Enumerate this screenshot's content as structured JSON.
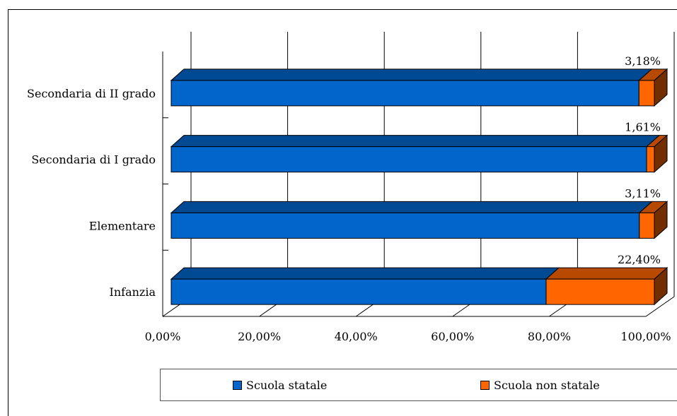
{
  "chart_data": {
    "type": "bar",
    "orientation": "horizontal",
    "stacked": "percent",
    "style": "3d",
    "categories": [
      "Secondaria di II grado",
      "Secondaria di I grado",
      "Elementare",
      "Infanzia"
    ],
    "series": [
      {
        "name": "Scuola statale",
        "values": [
          96.82,
          98.39,
          96.89,
          77.6
        ],
        "color": "#0066CC"
      },
      {
        "name": "Scuola non statale",
        "values": [
          3.18,
          1.61,
          3.11,
          22.4
        ],
        "color": "#FF6600"
      }
    ],
    "data_labels": [
      "3,18%",
      "1,61%",
      "3,11%",
      "22,40%"
    ],
    "x_ticks": [
      "0,00%",
      "20,00%",
      "40,00%",
      "60,00%",
      "80,00%",
      "100,00%"
    ],
    "xlim": [
      0,
      100
    ],
    "grid": true,
    "legend_position": "bottom"
  }
}
